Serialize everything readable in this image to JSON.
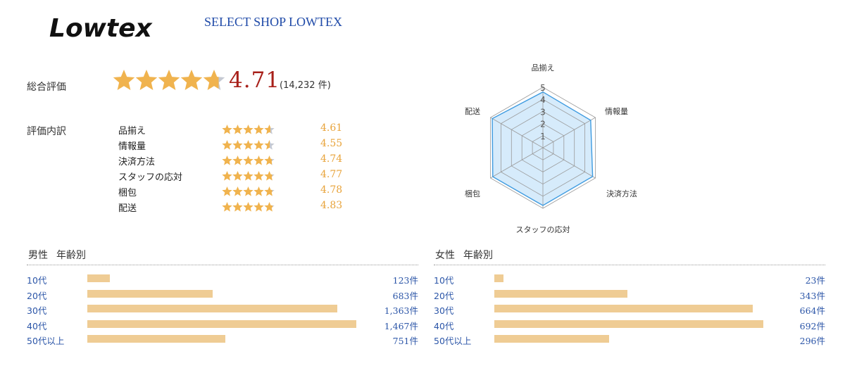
{
  "header": {
    "logo_text": "Lowtex",
    "shop_name": "SELECT SHOP LOWTEX"
  },
  "overall": {
    "label": "総合評価",
    "score": "4.71",
    "rating": 4.71,
    "count": "(14,232 件)"
  },
  "breakdown": {
    "label": "評価内訳",
    "items": [
      {
        "label": "品揃え",
        "value": "4.61",
        "rating": 4.61
      },
      {
        "label": "情報量",
        "value": "4.55",
        "rating": 4.55
      },
      {
        "label": "決済方法",
        "value": "4.74",
        "rating": 4.74
      },
      {
        "label": "スタッフの応対",
        "value": "4.77",
        "rating": 4.77
      },
      {
        "label": "梱包",
        "value": "4.78",
        "rating": 4.78
      },
      {
        "label": "配送",
        "value": "4.83",
        "rating": 4.83
      }
    ]
  },
  "radar": {
    "axis_labels": [
      "品揃え",
      "情報量",
      "決済方法",
      "スタッフの応対",
      "梱包",
      "配送"
    ],
    "values": [
      4.61,
      4.55,
      4.74,
      4.77,
      4.78,
      4.83
    ],
    "scale_labels": [
      "1",
      "2",
      "3",
      "4",
      "5"
    ],
    "max": 5,
    "fill_color": "#d6ebfb",
    "line_color": "#3e9be0"
  },
  "male": {
    "title": "男性",
    "subtitle": "年齢別",
    "rows": [
      {
        "label": "10代",
        "count": "123件",
        "value": 123
      },
      {
        "label": "20代",
        "count": "683件",
        "value": 683
      },
      {
        "label": "30代",
        "count": "1,363件",
        "value": 1363
      },
      {
        "label": "40代",
        "count": "1,467件",
        "value": 1467
      },
      {
        "label": "50代以上",
        "count": "751件",
        "value": 751
      }
    ]
  },
  "female": {
    "title": "女性",
    "subtitle": "年齢別",
    "rows": [
      {
        "label": "10代",
        "count": "23件",
        "value": 23
      },
      {
        "label": "20代",
        "count": "343件",
        "value": 343
      },
      {
        "label": "30代",
        "count": "664件",
        "value": 664
      },
      {
        "label": "40代",
        "count": "692件",
        "value": 692
      },
      {
        "label": "50代以上",
        "count": "296件",
        "value": 296
      }
    ]
  },
  "colors": {
    "star_fill": "#f0b34e",
    "star_empty": "#c5c9d2",
    "score_red": "#a8201a",
    "breakdown_value": "#e8a33a",
    "link_blue": "#2c56a8",
    "bar": "#efcc94"
  }
}
